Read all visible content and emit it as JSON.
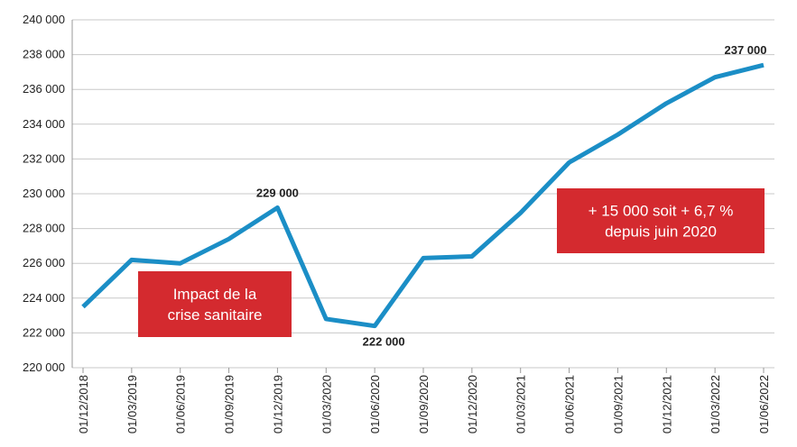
{
  "chart_data": {
    "type": "line",
    "categories": [
      "01/12/2018",
      "01/03/2019",
      "01/06/2019",
      "01/09/2019",
      "01/12/2019",
      "01/03/2020",
      "01/06/2020",
      "01/09/2020",
      "01/12/2020",
      "01/03/2021",
      "01/06/2021",
      "01/09/2021",
      "01/12/2021",
      "01/03/2022",
      "01/06/2022"
    ],
    "series": [
      {
        "color": "#1b8ec6",
        "values": [
          223500,
          226200,
          226000,
          227400,
          229200,
          222800,
          222400,
          226300,
          226400,
          228900,
          231800,
          233400,
          235200,
          236700,
          237400
        ],
        "value_labels": [
          null,
          null,
          null,
          null,
          "229 000",
          null,
          "222 000",
          null,
          null,
          null,
          null,
          null,
          null,
          null,
          "237 000"
        ]
      }
    ],
    "ylim": [
      220000,
      240000
    ],
    "yticks": [
      {
        "value": 220000,
        "label": "220 000"
      },
      {
        "value": 222000,
        "label": "222 000"
      },
      {
        "value": 224000,
        "label": "224 000"
      },
      {
        "value": 226000,
        "label": "226 000"
      },
      {
        "value": 228000,
        "label": "228 000"
      },
      {
        "value": 230000,
        "label": "230 000"
      },
      {
        "value": 232000,
        "label": "232 000"
      },
      {
        "value": 234000,
        "label": "234 000"
      },
      {
        "value": 236000,
        "label": "236 000"
      },
      {
        "value": 238000,
        "label": "238 000"
      },
      {
        "value": 240000,
        "label": "240 000"
      }
    ],
    "grid": true,
    "annotations": [
      {
        "lines": [
          "Impact de la",
          "crise sanitaire"
        ],
        "color": "#d42a2f"
      },
      {
        "lines": [
          "+ 15 000 soit + 6,7 %",
          "depuis juin 2020"
        ],
        "color": "#d42a2f"
      }
    ]
  }
}
